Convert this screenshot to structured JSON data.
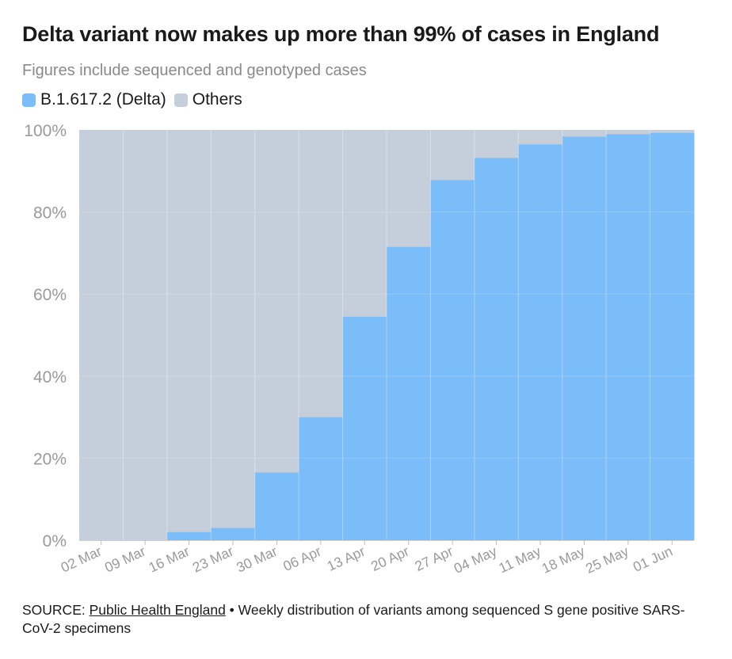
{
  "header": {
    "title": "Delta variant now makes up more than 99% of cases in England",
    "subtitle": "Figures include sequenced and genotyped cases"
  },
  "legend": {
    "items": [
      {
        "label": "B.1.617.2 (Delta)",
        "color": "#7bbdf8"
      },
      {
        "label": "Others",
        "color": "#c5cfdb"
      }
    ]
  },
  "chart_data": {
    "type": "area",
    "title": "Delta variant now makes up more than 99% of cases in England",
    "subtitle": "Figures include sequenced and genotyped cases",
    "categories": [
      "02 Mar",
      "09 Mar",
      "16 Mar",
      "23 Mar",
      "30 Mar",
      "06 Apr",
      "13 Apr",
      "20 Apr",
      "27 Apr",
      "04 May",
      "11 May",
      "18 May",
      "25 May",
      "01 Jun"
    ],
    "series": [
      {
        "name": "B.1.617.2 (Delta)",
        "values": [
          0,
          0,
          2,
          3,
          16.5,
          30,
          54.5,
          71.5,
          87.8,
          93.2,
          96.5,
          98.4,
          99,
          99.3
        ],
        "color": "#7bbdf8"
      },
      {
        "name": "Others",
        "values": [
          100,
          100,
          98,
          97,
          83.5,
          70,
          45.5,
          28.5,
          12.2,
          6.8,
          3.5,
          1.6,
          1,
          0.7
        ],
        "color": "#c5cfdb"
      }
    ],
    "stacked": true,
    "step": true,
    "ylim": [
      0,
      100
    ],
    "yticks": [
      0,
      20,
      40,
      60,
      80,
      100
    ],
    "ytick_labels": [
      "0%",
      "20%",
      "40%",
      "60%",
      "80%",
      "100%"
    ],
    "xlabel": "",
    "ylabel": "",
    "legend_position": "top-left"
  },
  "footer": {
    "source_prefix": "SOURCE: ",
    "source_link": "Public Health England",
    "source_note": " • Weekly distribution of variants among sequenced S gene positive SARS-CoV-2 specimens"
  }
}
